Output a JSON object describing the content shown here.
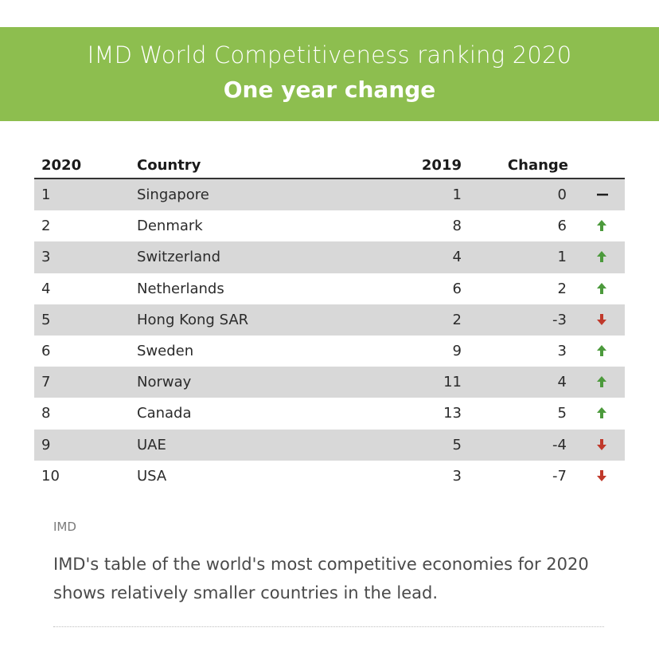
{
  "header": {
    "title": "IMD World Competitiveness ranking 2020",
    "subtitle": "One year change"
  },
  "colors": {
    "banner": "#8dbe4f",
    "up": "#4c9a3c",
    "down": "#c0392b",
    "same": "#222222"
  },
  "chart_data": {
    "type": "table",
    "title": "IMD World Competitiveness ranking 2020",
    "subtitle": "One year change",
    "columns": [
      "2020",
      "Country",
      "2019",
      "Change"
    ],
    "rows": [
      {
        "rank": "1",
        "country": "Singapore",
        "prev": "1",
        "change": "0",
        "dir": "same"
      },
      {
        "rank": "2",
        "country": "Denmark",
        "prev": "8",
        "change": "6",
        "dir": "up"
      },
      {
        "rank": "3",
        "country": "Switzerland",
        "prev": "4",
        "change": "1",
        "dir": "up"
      },
      {
        "rank": "4",
        "country": "Netherlands",
        "prev": "6",
        "change": "2",
        "dir": "up"
      },
      {
        "rank": "5",
        "country": "Hong Kong SAR",
        "prev": "2",
        "change": "-3",
        "dir": "down"
      },
      {
        "rank": "6",
        "country": "Sweden",
        "prev": "9",
        "change": "3",
        "dir": "up"
      },
      {
        "rank": "7",
        "country": "Norway",
        "prev": "11",
        "change": "4",
        "dir": "up"
      },
      {
        "rank": "8",
        "country": "Canada",
        "prev": "13",
        "change": "5",
        "dir": "up"
      },
      {
        "rank": "9",
        "country": "UAE",
        "prev": "5",
        "change": "-4",
        "dir": "down"
      },
      {
        "rank": "10",
        "country": "USA",
        "prev": "3",
        "change": "-7",
        "dir": "down"
      }
    ]
  },
  "source": "IMD",
  "caption": "IMD's table of the world's most competitive economies for 2020 shows relatively smaller countries in the lead."
}
